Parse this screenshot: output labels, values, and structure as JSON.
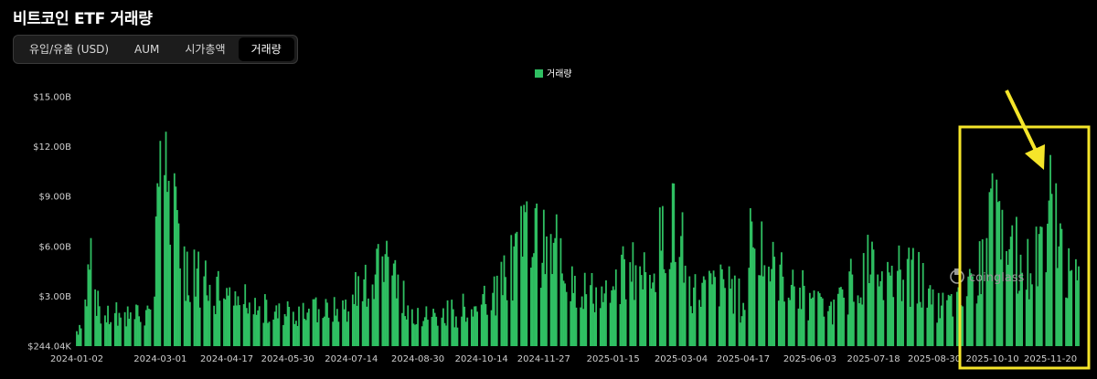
{
  "header": {
    "title": "비트코인 ETF 거래량"
  },
  "tabs": [
    {
      "label": "유입/유출 (USD)",
      "active": false
    },
    {
      "label": "AUM",
      "active": false
    },
    {
      "label": "시가총액",
      "active": false
    },
    {
      "label": "거래량",
      "active": true
    }
  ],
  "watermark": "coinglass",
  "colors": {
    "bar": "#2fbf62",
    "highlight": "#f5e52a",
    "background": "#000000"
  },
  "chart_data": {
    "type": "bar",
    "legend": [
      "거래량"
    ],
    "legend_position": "top-center",
    "grid": false,
    "x_start": "2024-01-02",
    "x_end": "2025-12-10",
    "ylim": [
      244000,
      15000000000
    ],
    "y_ticks": [
      "$244.04K",
      "$3.00B",
      "$6.00B",
      "$9.00B",
      "$12.00B",
      "$15.00B"
    ],
    "x_ticks": [
      "2024-01-02",
      "2024-03-01",
      "2024-04-17",
      "2024-05-30",
      "2024-07-14",
      "2024-08-30",
      "2024-10-14",
      "2024-11-27",
      "2025-01-15",
      "2025-03-04",
      "2025-04-17",
      "2025-06-03",
      "2025-07-18",
      "2025-08-30",
      "2025-10-10",
      "2025-11-20"
    ],
    "series": [
      {
        "name": "거래량",
        "anchors": [
          {
            "x": "2024-01-02",
            "y": 0.9
          },
          {
            "x": "2024-01-11",
            "y": 4.6
          },
          {
            "x": "2024-01-12",
            "y": 6.5
          },
          {
            "x": "2024-01-18",
            "y": 2.4
          },
          {
            "x": "2024-02-01",
            "y": 2.0
          },
          {
            "x": "2024-02-13",
            "y": 2.5
          },
          {
            "x": "2024-02-23",
            "y": 2.2
          },
          {
            "x": "2024-02-27",
            "y": 7.8
          },
          {
            "x": "2024-02-28",
            "y": 9.8
          },
          {
            "x": "2024-03-05",
            "y": 12.9
          },
          {
            "x": "2024-03-12",
            "y": 9.6
          },
          {
            "x": "2024-03-18",
            "y": 6.0
          },
          {
            "x": "2024-04-01",
            "y": 4.2
          },
          {
            "x": "2024-04-17",
            "y": 3.5
          },
          {
            "x": "2024-05-10",
            "y": 2.4
          },
          {
            "x": "2024-06-10",
            "y": 2.6
          },
          {
            "x": "2024-07-10",
            "y": 2.8
          },
          {
            "x": "2024-08-05",
            "y": 5.4
          },
          {
            "x": "2024-08-30",
            "y": 2.3
          },
          {
            "x": "2024-10-14",
            "y": 2.5
          },
          {
            "x": "2024-11-06",
            "y": 6.0
          },
          {
            "x": "2024-11-13",
            "y": 8.5
          },
          {
            "x": "2024-11-21",
            "y": 8.3
          },
          {
            "x": "2024-12-05",
            "y": 6.5
          },
          {
            "x": "2024-12-17",
            "y": 4.8
          },
          {
            "x": "2025-01-15",
            "y": 3.6
          },
          {
            "x": "2025-01-21",
            "y": 5.5
          },
          {
            "x": "2025-02-03",
            "y": 4.8
          },
          {
            "x": "2025-02-26",
            "y": 9.8
          },
          {
            "x": "2025-03-10",
            "y": 4.2
          },
          {
            "x": "2025-04-07",
            "y": 4.8
          },
          {
            "x": "2025-04-17",
            "y": 2.6
          },
          {
            "x": "2025-04-23",
            "y": 7.5
          },
          {
            "x": "2025-05-22",
            "y": 4.6
          },
          {
            "x": "2025-06-03",
            "y": 3.2
          },
          {
            "x": "2025-06-20",
            "y": 2.8
          },
          {
            "x": "2025-07-11",
            "y": 5.6
          },
          {
            "x": "2025-07-14",
            "y": 6.7
          },
          {
            "x": "2025-07-24",
            "y": 4.5
          },
          {
            "x": "2025-08-14",
            "y": 5.2
          },
          {
            "x": "2025-08-30",
            "y": 3.0
          },
          {
            "x": "2025-09-20",
            "y": 3.5
          },
          {
            "x": "2025-10-06",
            "y": 6.5
          },
          {
            "x": "2025-10-10",
            "y": 10.4
          },
          {
            "x": "2025-10-17",
            "y": 8.2
          },
          {
            "x": "2025-10-30",
            "y": 5.5
          },
          {
            "x": "2025-11-13",
            "y": 7.2
          },
          {
            "x": "2025-11-20",
            "y": 11.5
          },
          {
            "x": "2025-11-26",
            "y": 6.0
          },
          {
            "x": "2025-12-10",
            "y": 4.8
          }
        ]
      }
    ]
  }
}
